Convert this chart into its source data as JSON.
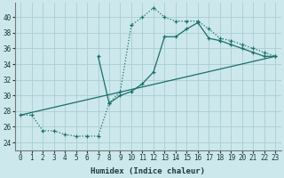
{
  "xlabel": "Humidex (Indice chaleur)",
  "bg_color": "#cce8ec",
  "grid_color": "#aacdd4",
  "line_color": "#1a6e6a",
  "xlim": [
    -0.5,
    23.5
  ],
  "ylim": [
    23.0,
    41.8
  ],
  "xticks": [
    0,
    1,
    2,
    3,
    4,
    5,
    6,
    7,
    8,
    9,
    10,
    11,
    12,
    13,
    14,
    15,
    16,
    17,
    18,
    19,
    20,
    21,
    22,
    23
  ],
  "yticks": [
    24,
    26,
    28,
    30,
    32,
    34,
    36,
    38,
    40
  ],
  "curve1_x": [
    0,
    1,
    2,
    3,
    4,
    5,
    6,
    7,
    8,
    9,
    10,
    11,
    12,
    13,
    14,
    15,
    16,
    17,
    18,
    19,
    20,
    21,
    22,
    23
  ],
  "curve1_y": [
    27.5,
    27.5,
    25.5,
    25.5,
    25.0,
    24.8,
    24.8,
    24.8,
    29.0,
    30.5,
    39.0,
    40.0,
    41.2,
    40.0,
    39.5,
    39.5,
    39.5,
    38.5,
    37.3,
    37.0,
    36.5,
    36.0,
    35.5,
    35.0
  ],
  "curve2_x": [
    0,
    23
  ],
  "curve2_y": [
    27.5,
    35.0
  ],
  "curve3_x": [
    7,
    8,
    9,
    10,
    11,
    12,
    13,
    14,
    15,
    16,
    17,
    18,
    19,
    20,
    21,
    22,
    23
  ],
  "curve3_y": [
    35.0,
    29.0,
    30.0,
    30.5,
    31.5,
    33.0,
    37.5,
    37.5,
    38.5,
    39.3,
    37.3,
    37.0,
    36.5,
    36.0,
    35.5,
    35.0,
    35.0
  ]
}
